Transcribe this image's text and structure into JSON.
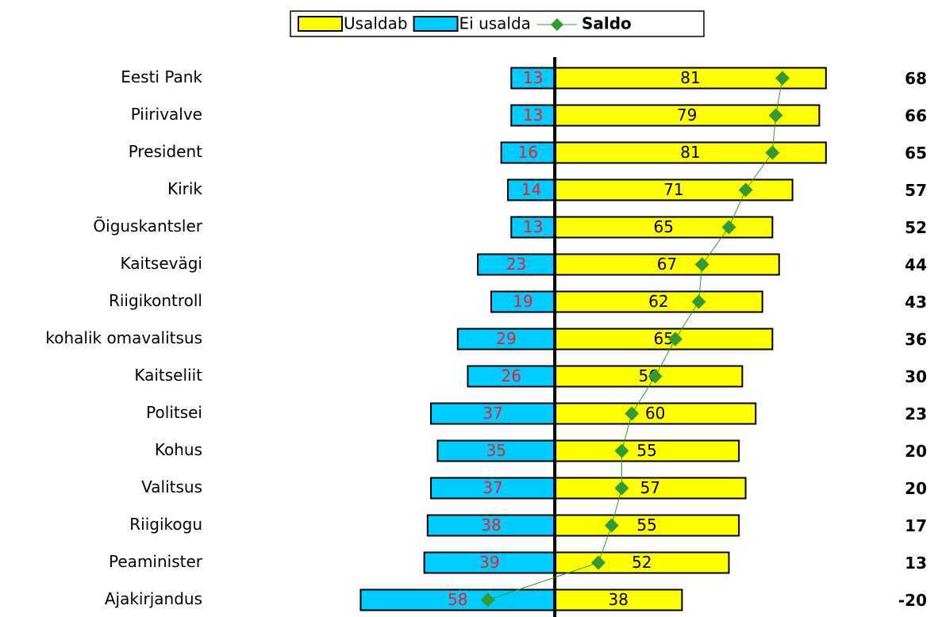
{
  "chart_data": {
    "type": "diverging-bar",
    "categories": [
      "Eesti Pank",
      "Piirivalve",
      "President",
      "Kirik",
      "Õiguskantsler",
      "Kaitsevägi",
      "Riigikontroll",
      "kohalik omavalitsus",
      "Kaitseliit",
      "Politsei",
      "Kohus",
      "Valitsus",
      "Riigikogu",
      "Peaminister",
      "Ajakirjandus"
    ],
    "series": [
      {
        "name": "Usaldab",
        "color": "#ffff00",
        "label_color": "#000000",
        "direction": "right",
        "values": [
          81,
          79,
          81,
          71,
          65,
          67,
          62,
          65,
          56,
          60,
          55,
          57,
          55,
          52,
          38
        ]
      },
      {
        "name": "Ei usalda",
        "color": "#00ccff",
        "label_color": "#e8202a",
        "direction": "left",
        "values": [
          13,
          13,
          16,
          14,
          13,
          23,
          19,
          29,
          26,
          37,
          35,
          37,
          38,
          39,
          58
        ]
      },
      {
        "name": "Saldo",
        "type": "line",
        "color": "#339933",
        "values": [
          68,
          66,
          65,
          57,
          52,
          44,
          43,
          36,
          30,
          23,
          20,
          20,
          17,
          13,
          -20
        ]
      }
    ],
    "xlim": [
      -60,
      100
    ],
    "legend": "top"
  }
}
